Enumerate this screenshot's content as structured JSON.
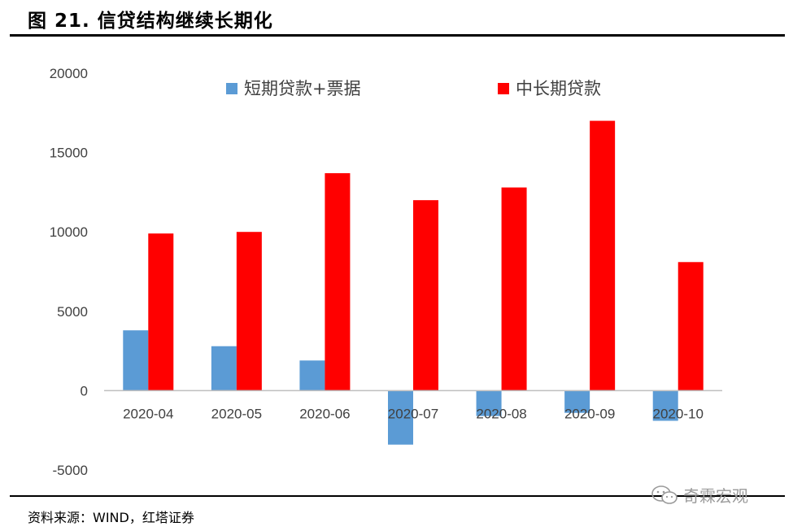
{
  "header": {
    "title": "图 21. 信贷结构继续长期化"
  },
  "footer": {
    "source": "资料来源：WIND，红塔证券",
    "watermark": "奇霖宏观"
  },
  "colors": {
    "short_term": "#5b9bd5",
    "long_term": "#ff0000"
  },
  "chart_data": {
    "type": "bar",
    "title": "",
    "xlabel": "",
    "ylabel": "",
    "categories": [
      "2020-04",
      "2020-05",
      "2020-06",
      "2020-07",
      "2020-08",
      "2020-09",
      "2020-10"
    ],
    "series": [
      {
        "name": "短期贷款+票据",
        "color": "#5b9bd5",
        "values": [
          3800,
          2800,
          1900,
          -3400,
          -1600,
          -1400,
          -1900
        ]
      },
      {
        "name": "中长期贷款",
        "color": "#ff0000",
        "values": [
          9900,
          10000,
          13700,
          12000,
          12800,
          17000,
          8100
        ]
      }
    ],
    "ylim": [
      -5000,
      20000
    ],
    "yticks": [
      -5000,
      0,
      5000,
      10000,
      15000,
      20000
    ],
    "legend_position": "top",
    "grid": false
  }
}
